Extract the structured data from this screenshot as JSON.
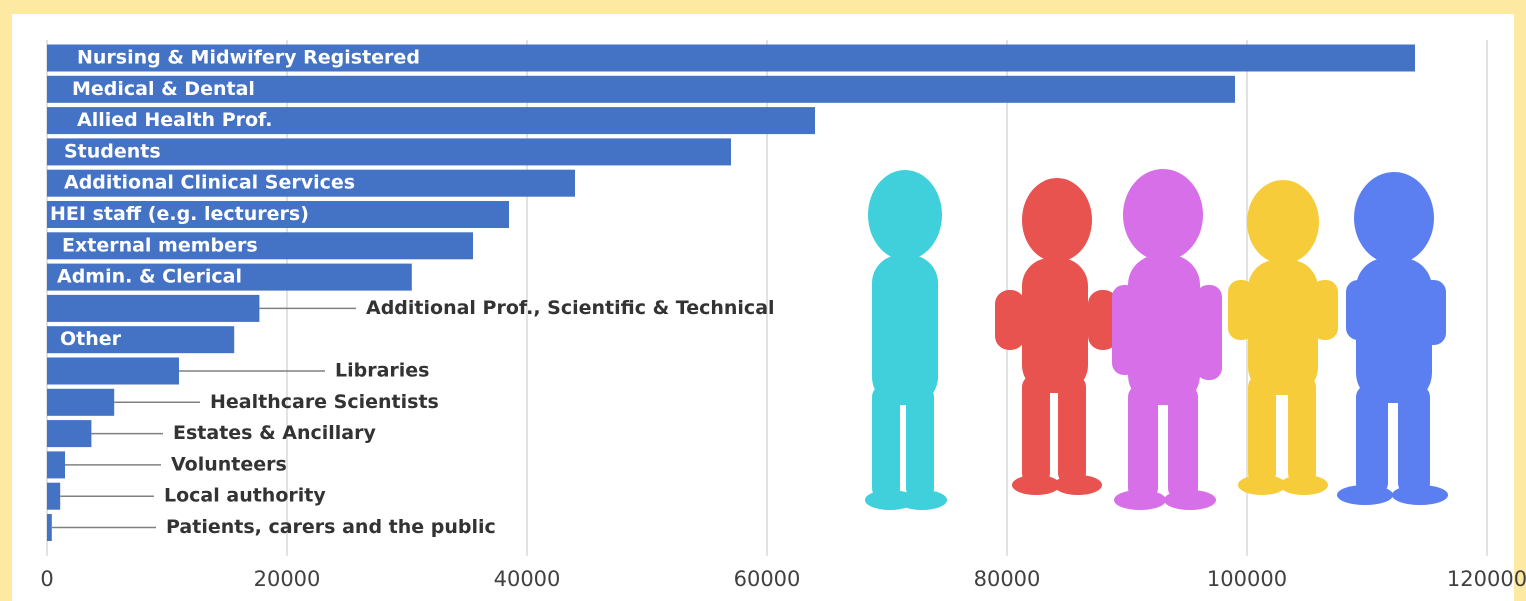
{
  "chart_data": {
    "type": "bar",
    "orientation": "horizontal",
    "categories": [
      "Nursing & Midwifery Registered",
      "Medical & Dental",
      "Allied Health Prof.",
      "Students",
      "Additional Clinical Services",
      "HEI staff (e.g. lecturers)",
      "External members",
      "Admin. & Clerical",
      "Additional Prof., Scientific & Technical",
      "Other",
      "Libraries",
      "Healthcare Scientists",
      "Estates & Ancillary",
      "Volunteers",
      "Local authority",
      "Patients, carers and the public"
    ],
    "values": [
      114000,
      99000,
      64000,
      57000,
      44000,
      38500,
      35500,
      30400,
      17700,
      15600,
      11000,
      5600,
      3700,
      1500,
      1100,
      400
    ],
    "color": "#4472c4",
    "xlim": [
      0,
      120000
    ],
    "xticks": [
      0,
      20000,
      40000,
      60000,
      80000,
      100000,
      120000
    ],
    "grid": true
  }
}
